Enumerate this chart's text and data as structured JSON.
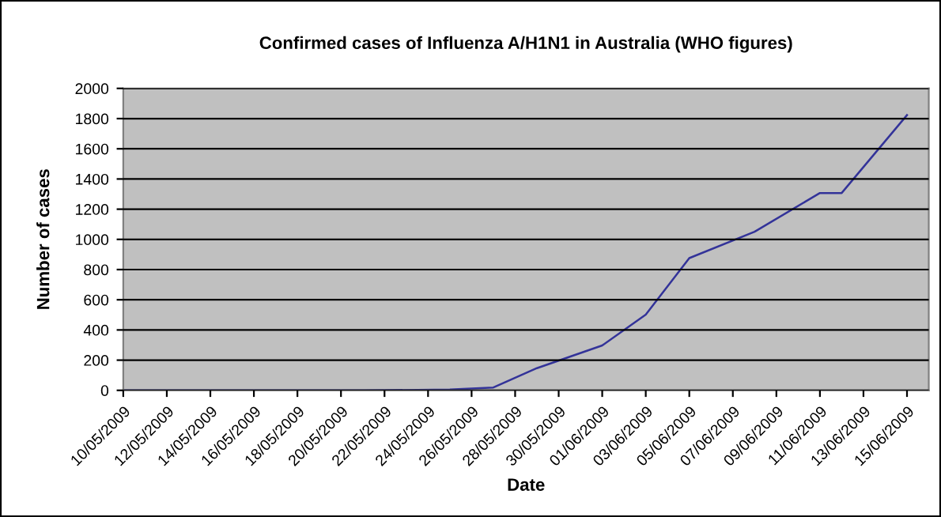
{
  "chart_data": {
    "type": "line",
    "title": "Confirmed cases of Influenza A/H1N1 in Australia (WHO figures)",
    "xlabel": "Date",
    "ylabel": "Number of cases",
    "x": [
      "2009-05-10",
      "2009-05-21",
      "2009-05-22",
      "2009-05-25",
      "2009-05-26",
      "2009-05-27",
      "2009-05-29",
      "2009-06-01",
      "2009-06-03",
      "2009-06-05",
      "2009-06-08",
      "2009-06-11",
      "2009-06-12",
      "2009-06-15"
    ],
    "series": [
      {
        "color": "#333399",
        "values": [
          0,
          0,
          1,
          5,
          12,
          19,
          147,
          297,
          501,
          876,
          1051,
          1307,
          1307,
          1823
        ]
      }
    ],
    "xlim": [
      "2009-05-10",
      "2009-06-16"
    ],
    "xticks": [
      {
        "value": "2009-05-10",
        "label": "10/05/2009"
      },
      {
        "value": "2009-05-12",
        "label": "12/05/2009"
      },
      {
        "value": "2009-05-14",
        "label": "14/05/2009"
      },
      {
        "value": "2009-05-16",
        "label": "16/05/2009"
      },
      {
        "value": "2009-05-18",
        "label": "18/05/2009"
      },
      {
        "value": "2009-05-20",
        "label": "20/05/2009"
      },
      {
        "value": "2009-05-22",
        "label": "22/05/2009"
      },
      {
        "value": "2009-05-24",
        "label": "24/05/2009"
      },
      {
        "value": "2009-05-26",
        "label": "26/05/2009"
      },
      {
        "value": "2009-05-28",
        "label": "28/05/2009"
      },
      {
        "value": "2009-05-30",
        "label": "30/05/2009"
      },
      {
        "value": "2009-06-01",
        "label": "01/06/2009"
      },
      {
        "value": "2009-06-03",
        "label": "03/06/2009"
      },
      {
        "value": "2009-06-05",
        "label": "05/06/2009"
      },
      {
        "value": "2009-06-07",
        "label": "07/06/2009"
      },
      {
        "value": "2009-06-09",
        "label": "09/06/2009"
      },
      {
        "value": "2009-06-11",
        "label": "11/06/2009"
      },
      {
        "value": "2009-06-13",
        "label": "13/06/2009"
      },
      {
        "value": "2009-06-15",
        "label": "15/06/2009"
      }
    ],
    "ylim": [
      0,
      2000
    ],
    "yticks": [
      0,
      200,
      400,
      600,
      800,
      1000,
      1200,
      1400,
      1600,
      1800,
      2000
    ],
    "grid": "y",
    "legend": false,
    "marker": "none",
    "line_style": "solid"
  }
}
